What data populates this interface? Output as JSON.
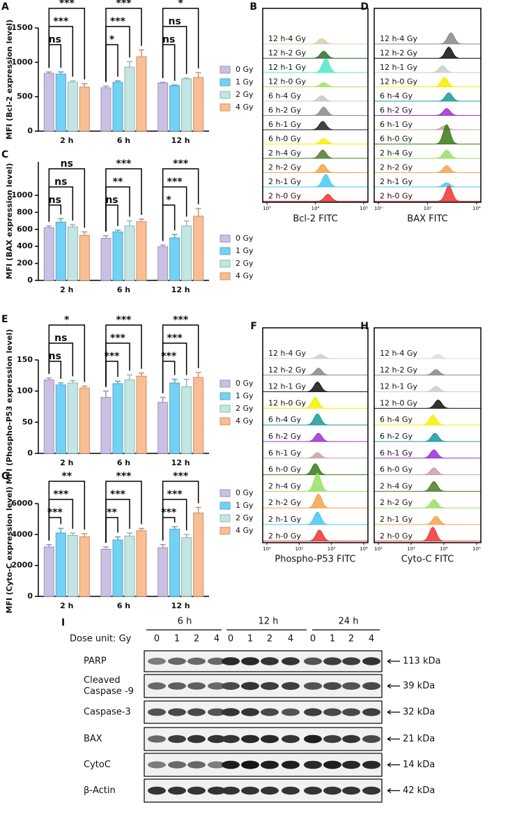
{
  "chart_data": [
    {
      "type": "bar",
      "panel": "A",
      "ylabel": "MFI (Bcl-2 expression level)",
      "categories": [
        "2 h",
        "6 h",
        "12 h"
      ],
      "series": [
        {
          "name": "0 Gy",
          "color": "#cbbfe4",
          "values": [
            840,
            630,
            700
          ],
          "errors": [
            20,
            25,
            10
          ]
        },
        {
          "name": "1 Gy",
          "color": "#72d2f6",
          "values": [
            830,
            710,
            660
          ],
          "errors": [
            30,
            20,
            10
          ]
        },
        {
          "name": "2 Gy",
          "color": "#c2e6e2",
          "values": [
            710,
            930,
            760
          ],
          "errors": [
            20,
            80,
            10
          ]
        },
        {
          "name": "4 Gy",
          "color": "#fbbd92",
          "values": [
            640,
            1080,
            780
          ],
          "errors": [
            50,
            100,
            70
          ]
        }
      ],
      "significance": [
        [
          "ns",
          "***",
          "***"
        ],
        [
          "*",
          "***",
          "***"
        ],
        [
          "ns",
          "ns",
          "*"
        ]
      ],
      "ylim": [
        0,
        1500
      ],
      "yticks": [
        0,
        500,
        1000,
        1500
      ]
    },
    {
      "type": "bar",
      "panel": "C",
      "ylabel": "MFI (BAX expression level)",
      "categories": [
        "2 h",
        "6 h",
        "12 h"
      ],
      "series": [
        {
          "name": "0 Gy",
          "color": "#cbbfe4",
          "values": [
            620,
            495,
            395
          ],
          "errors": [
            20,
            30,
            20
          ]
        },
        {
          "name": "1 Gy",
          "color": "#72d2f6",
          "values": [
            685,
            570,
            500
          ],
          "errors": [
            40,
            20,
            40
          ]
        },
        {
          "name": "2 Gy",
          "color": "#c2e6e2",
          "values": [
            630,
            640,
            640
          ],
          "errors": [
            25,
            60,
            60
          ]
        },
        {
          "name": "4 Gy",
          "color": "#fbbd92",
          "values": [
            530,
            690,
            755
          ],
          "errors": [
            40,
            30,
            90
          ]
        }
      ],
      "significance": [
        [
          "ns",
          "ns",
          "ns"
        ],
        [
          "ns",
          "**",
          "***"
        ],
        [
          "*",
          "***",
          "***"
        ]
      ],
      "ylim": [
        0,
        1000
      ],
      "yticks": [
        0,
        200,
        400,
        600,
        800,
        1000
      ]
    },
    {
      "type": "bar",
      "panel": "E",
      "ylabel": "MFI (Phospho-P53 expression level)",
      "categories": [
        "2 h",
        "6 h",
        "12 h"
      ],
      "series": [
        {
          "name": "0 Gy",
          "color": "#cbbfe4",
          "values": [
            118,
            90,
            82
          ],
          "errors": [
            3,
            10,
            8
          ]
        },
        {
          "name": "1 Gy",
          "color": "#72d2f6",
          "values": [
            110,
            112,
            113
          ],
          "errors": [
            3,
            4,
            6
          ]
        },
        {
          "name": "2 Gy",
          "color": "#c2e6e2",
          "values": [
            113,
            118,
            107
          ],
          "errors": [
            4,
            8,
            12
          ]
        },
        {
          "name": "4 Gy",
          "color": "#fbbd92",
          "values": [
            105,
            124,
            122
          ],
          "errors": [
            3,
            5,
            8
          ]
        }
      ],
      "significance": [
        [
          "ns",
          "ns",
          "*"
        ],
        [
          "***",
          "***",
          "***"
        ],
        [
          "***",
          "***",
          "***"
        ]
      ],
      "ylim": [
        0,
        150
      ],
      "yticks": [
        0,
        50,
        100,
        150
      ]
    },
    {
      "type": "bar",
      "panel": "G",
      "ylabel": "MFI (Cyto-C expression level)",
      "categories": [
        "2 h",
        "6 h",
        "12 h"
      ],
      "series": [
        {
          "name": "0 Gy",
          "color": "#cbbfe4",
          "values": [
            3200,
            3050,
            3150
          ],
          "errors": [
            150,
            150,
            200
          ]
        },
        {
          "name": "1 Gy",
          "color": "#72d2f6",
          "values": [
            4100,
            3650,
            4350
          ],
          "errors": [
            300,
            200,
            150
          ]
        },
        {
          "name": "2 Gy",
          "color": "#c2e6e2",
          "values": [
            3950,
            3900,
            3800
          ],
          "errors": [
            150,
            200,
            200
          ]
        },
        {
          "name": "4 Gy",
          "color": "#fbbd92",
          "values": [
            3850,
            4250,
            5400
          ],
          "errors": [
            200,
            150,
            350
          ]
        }
      ],
      "significance": [
        [
          "***",
          "***",
          "**"
        ],
        [
          "**",
          "***",
          "***"
        ],
        [
          "***",
          "***",
          "***"
        ]
      ],
      "ylim": [
        0,
        6000
      ],
      "yticks": [
        0,
        2000,
        4000,
        6000
      ]
    }
  ],
  "flow_panels": [
    {
      "letter": "B",
      "xlabel": "Bcl-2 FITC",
      "xticks": [
        "10³",
        "10⁴",
        "10⁵"
      ],
      "rows": [
        "12 h-4 Gy",
        "12 h-2 Gy",
        "12 h-1 Gy",
        "12 h-0 Gy",
        "6 h-4 Gy",
        "6 h-2 Gy",
        "6 h-1 Gy",
        "6 h-0 Gy",
        "2 h-4 Gy",
        "2 h-2 Gy",
        "2 h-1 Gy",
        "2 h-0 Gy"
      ]
    },
    {
      "letter": "D",
      "xlabel": "BAX FITC",
      "xticks": [
        "10⁰",
        "10²",
        "10⁴"
      ],
      "rows": [
        "12 h-4 Gy",
        "12 h-2 Gy",
        "12 h-1 Gy",
        "12 h-0 Gy",
        "6 h-4 Gy",
        "6 h-2 Gy",
        "6 h-1 Gy",
        "6 h-0 Gy",
        "2 h-4 Gy",
        "2 h-2 Gy",
        "2 h-1 Gy",
        "2 h-0 Gy"
      ]
    },
    {
      "letter": "F",
      "xlabel": "Phospho-P53 FITC",
      "xticks": [
        "10¹",
        "10²",
        "10³",
        "10⁴"
      ],
      "rows": [
        "12 h-4 Gy",
        "12 h-2 Gy",
        "12 h-1 Gy",
        "12 h-0 Gy",
        "6 h-4 Gy",
        "6 h-2 Gy",
        "6 h-1 Gy",
        "6 h-0 Gy",
        "2 h-4 Gy",
        "2 h-2 Gy",
        "2 h-1 Gy",
        "2 h-0 Gy"
      ]
    },
    {
      "letter": "H",
      "xlabel": "Cyto-C FITC",
      "xticks": [
        "10²",
        "10³",
        "10⁴",
        "10⁵"
      ],
      "rows": [
        "12 h-4 Gy",
        "12 h-2 Gy",
        "12 h-1 Gy",
        "12 h-0 Gy",
        "6 h-4 Gy",
        "6 h-2 Gy",
        "6 h-1 Gy",
        "6 h-0 Gy",
        "2 h-4 Gy",
        "2 h-2 Gy",
        "2 h-1 Gy",
        "2 h-0 Gy"
      ]
    }
  ],
  "blot": {
    "letter": "I",
    "times": [
      "6 h",
      "12 h",
      "24 h"
    ],
    "dose_label": "Dose unit: Gy",
    "doses": [
      "0",
      "1",
      "2",
      "4",
      "0",
      "1",
      "2",
      "4",
      "0",
      "1",
      "2",
      "4"
    ],
    "rows": [
      {
        "label": [
          "PARP"
        ],
        "size": "113 kDa"
      },
      {
        "label": [
          "Cleaved",
          "Caspase -9"
        ],
        "size": "39 kDa"
      },
      {
        "label": [
          "Caspase-3"
        ],
        "size": "32 kDa"
      },
      {
        "label": [
          "BAX"
        ],
        "size": "21 kDa"
      },
      {
        "label": [
          "CytoC"
        ],
        "size": "14 kDa"
      },
      {
        "label": [
          "β-Actin"
        ],
        "size": "42 kDa"
      }
    ]
  }
}
